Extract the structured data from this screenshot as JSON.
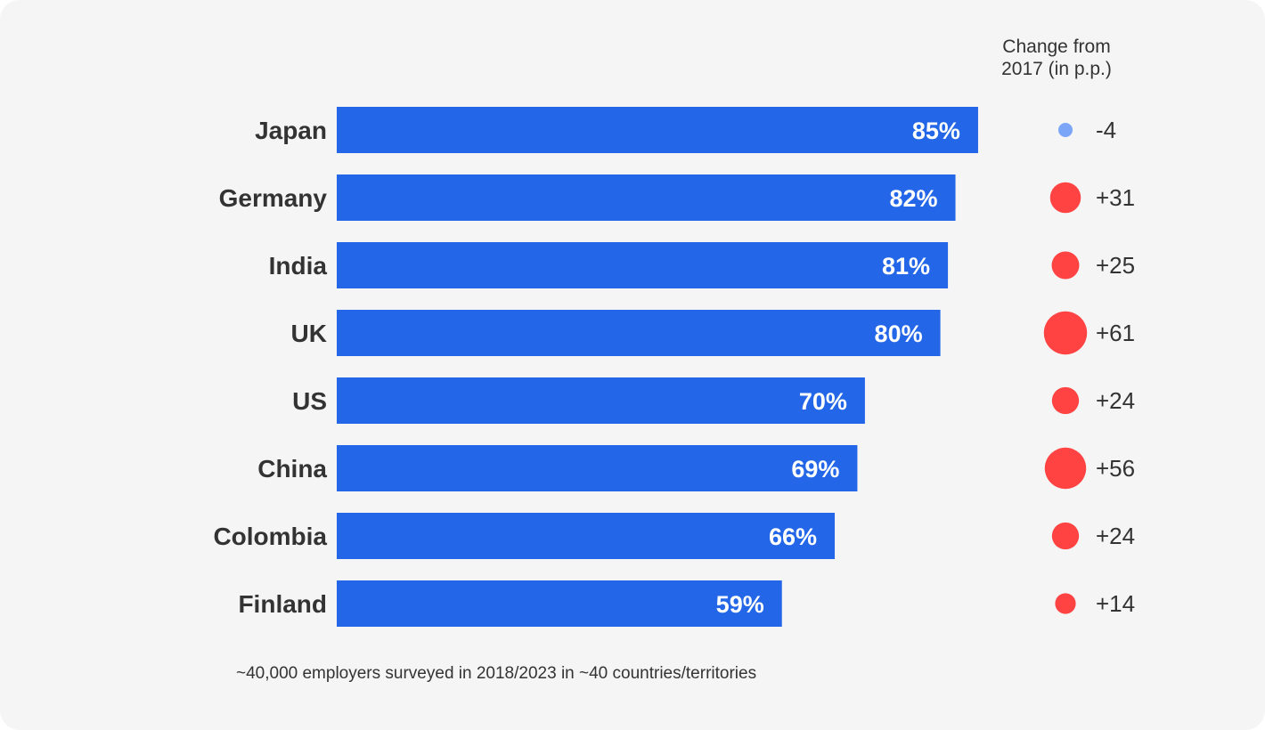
{
  "chart_data": {
    "type": "bar",
    "orientation": "horizontal",
    "categories": [
      "Japan",
      "Germany",
      "India",
      "UK",
      "US",
      "China",
      "Colombia",
      "Finland"
    ],
    "values": [
      85,
      82,
      81,
      80,
      70,
      69,
      66,
      59
    ],
    "value_labels": [
      "85%",
      "82%",
      "81%",
      "80%",
      "70%",
      "69%",
      "66%",
      "59%"
    ],
    "xlim": [
      0,
      100
    ],
    "grid": false,
    "change_header": "Change from 2017 (in p.p.)",
    "change_header_lines": [
      "Change from",
      "2017 (in p.p.)"
    ],
    "change_values": [
      -4,
      31,
      25,
      61,
      24,
      56,
      24,
      14
    ],
    "change_labels": [
      "-4",
      "+31",
      "+25",
      "+61",
      "+24",
      "+56",
      "+24",
      "+14"
    ],
    "note": "~40,000 employers surveyed in 2018/2023 in ~40 countries/territories",
    "colors": {
      "bar": "#2367E8",
      "positive": "#FF4343",
      "negative": "#7BA5F7",
      "text": "#333333",
      "bar_label": "#ffffff"
    }
  }
}
